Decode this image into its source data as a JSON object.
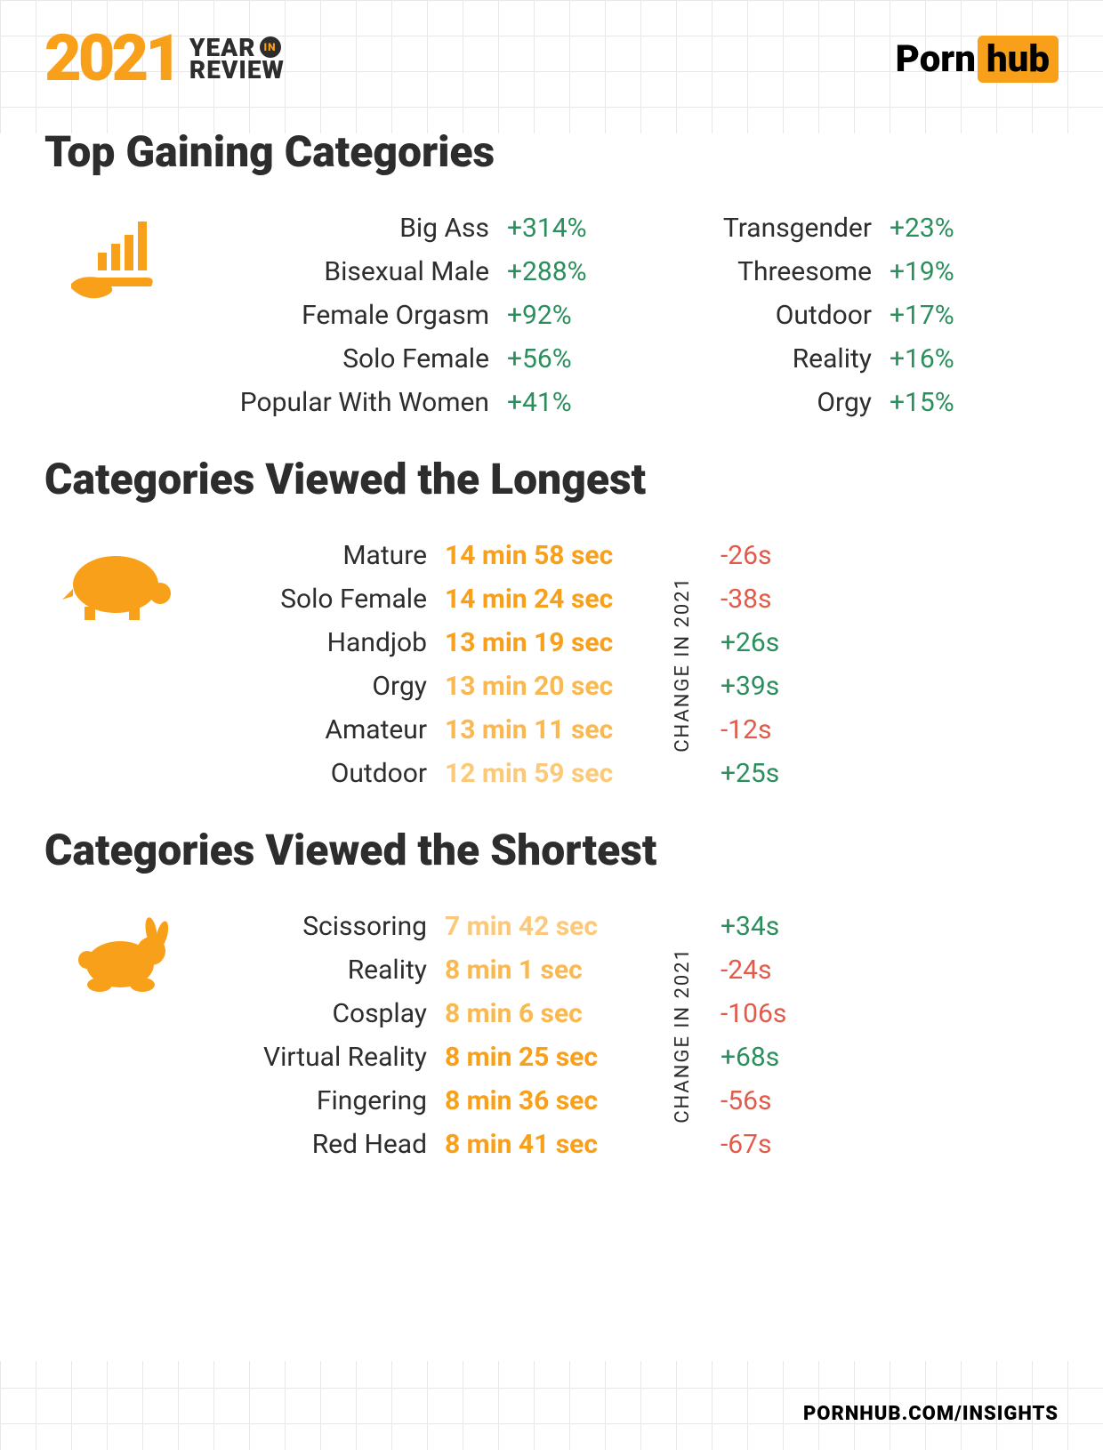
{
  "header": {
    "year": "2021",
    "line1": "YEAR",
    "in": "IN",
    "line2": "REVIEW",
    "brand_porn": "Porn",
    "brand_hub": "hub"
  },
  "footer": "PORNHUB.COM/INSIGHTS",
  "colors": {
    "accent": "#f9a01b",
    "dark": "#2d2d2d",
    "up": "#2a8f5c",
    "down": "#e25a4a",
    "grid": "#e8e8e8"
  },
  "sections": {
    "gaining": {
      "title": "Top Gaining Categories",
      "icon": "chart-hand",
      "col1": [
        {
          "label": "Big Ass",
          "value": "+314%",
          "dir": "up"
        },
        {
          "label": "Bisexual Male",
          "value": "+288%",
          "dir": "up"
        },
        {
          "label": "Female Orgasm",
          "value": "+92%",
          "dir": "up"
        },
        {
          "label": "Solo Female",
          "value": "+56%",
          "dir": "up"
        },
        {
          "label": "Popular With Women",
          "value": "+41%",
          "dir": "up"
        }
      ],
      "col2": [
        {
          "label": "Transgender",
          "value": "+23%",
          "dir": "up"
        },
        {
          "label": "Threesome",
          "value": "+19%",
          "dir": "up"
        },
        {
          "label": "Outdoor",
          "value": "+17%",
          "dir": "up"
        },
        {
          "label": "Reality",
          "value": "+16%",
          "dir": "up"
        },
        {
          "label": "Orgy",
          "value": "+15%",
          "dir": "up"
        }
      ]
    },
    "longest": {
      "title": "Categories Viewed the Longest",
      "icon": "turtle",
      "change_label": "CHANGE IN 2021",
      "rows": [
        {
          "label": "Mature",
          "duration": "14 min 58 sec",
          "dur_color": "#f9a01b",
          "change": "-26s",
          "dir": "down"
        },
        {
          "label": "Solo Female",
          "duration": "14 min 24 sec",
          "dur_color": "#f9a01b",
          "change": "-38s",
          "dir": "down"
        },
        {
          "label": "Handjob",
          "duration": "13 min 19 sec",
          "dur_color": "#f9a01b",
          "change": "+26s",
          "dir": "up"
        },
        {
          "label": "Orgy",
          "duration": "13 min 20 sec",
          "dur_color": "#fab850",
          "change": "+39s",
          "dir": "up"
        },
        {
          "label": "Amateur",
          "duration": "13 min 11 sec",
          "dur_color": "#fab850",
          "change": "-12s",
          "dir": "down"
        },
        {
          "label": "Outdoor",
          "duration": "12 min 59 sec",
          "dur_color": "#fcc97a",
          "change": "+25s",
          "dir": "up"
        }
      ]
    },
    "shortest": {
      "title": "Categories Viewed the Shortest",
      "icon": "rabbit",
      "change_label": "CHANGE IN 2021",
      "rows": [
        {
          "label": "Scissoring",
          "duration": "7 min 42 sec",
          "dur_color": "#fcc97a",
          "change": "+34s",
          "dir": "up"
        },
        {
          "label": "Reality",
          "duration": "8 min 1 sec",
          "dur_color": "#fab850",
          "change": "-24s",
          "dir": "down"
        },
        {
          "label": "Cosplay",
          "duration": "8 min 6 sec",
          "dur_color": "#fab850",
          "change": "-106s",
          "dir": "down"
        },
        {
          "label": "Virtual Reality",
          "duration": "8 min 25 sec",
          "dur_color": "#f9a01b",
          "change": "+68s",
          "dir": "up"
        },
        {
          "label": "Fingering",
          "duration": "8 min 36 sec",
          "dur_color": "#f9a01b",
          "change": "-56s",
          "dir": "down"
        },
        {
          "label": "Red Head",
          "duration": "8 min 41 sec",
          "dur_color": "#f9a01b",
          "change": "-67s",
          "dir": "down"
        }
      ]
    }
  }
}
